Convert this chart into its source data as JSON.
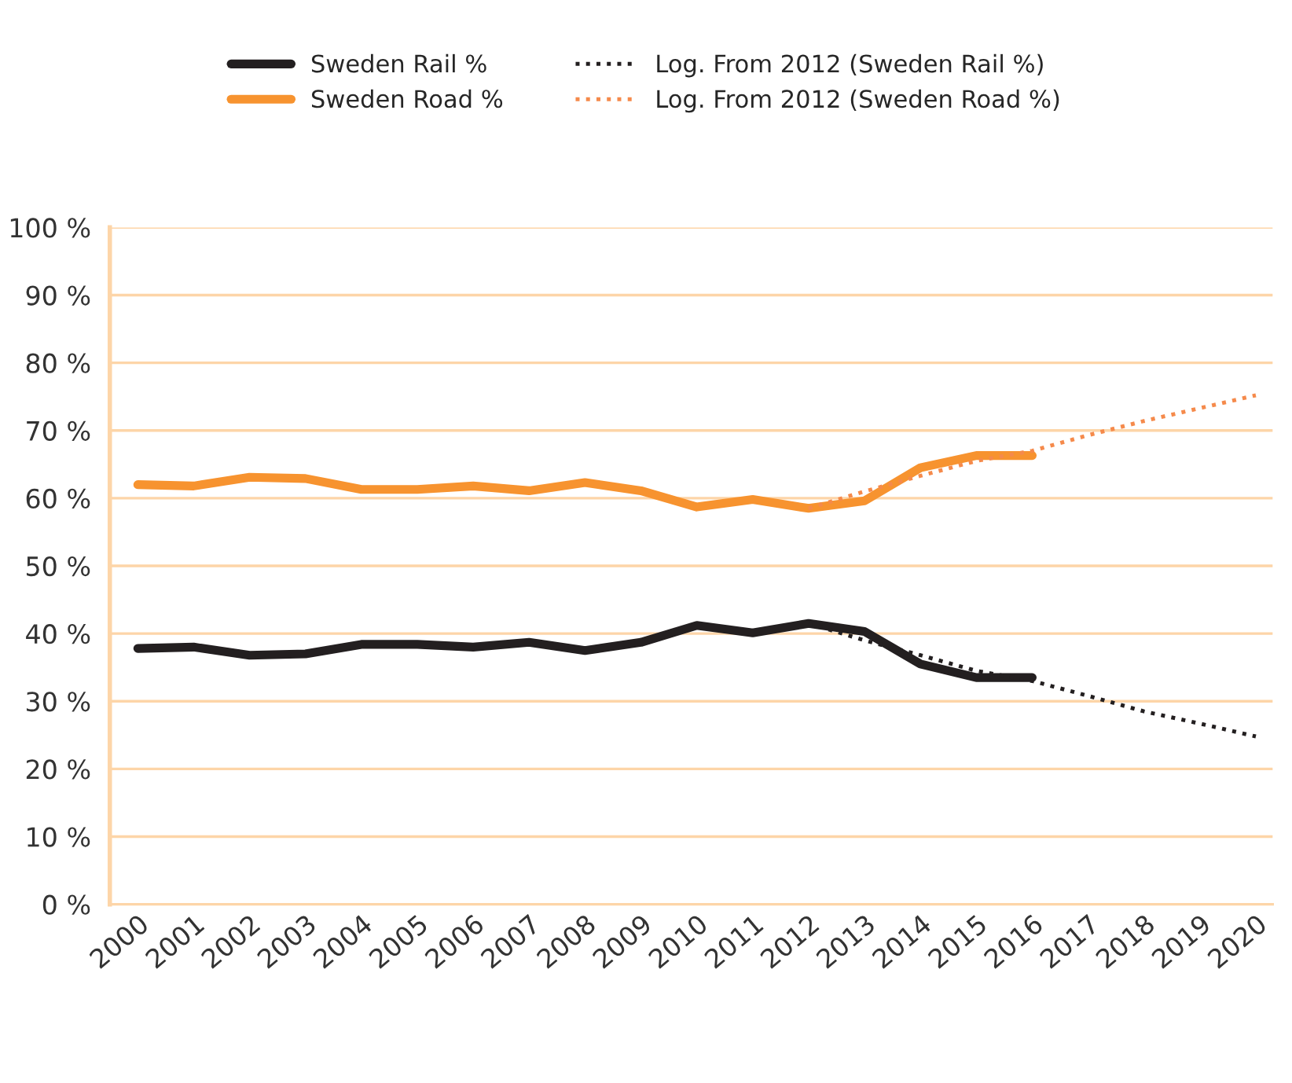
{
  "chart_data": {
    "type": "line",
    "categories": [
      "2000",
      "2001",
      "2002",
      "2003",
      "2004",
      "2005",
      "2006",
      "2007",
      "2008",
      "2009",
      "2010",
      "2011",
      "2012",
      "2013",
      "2014",
      "2015",
      "2016",
      "2017",
      "2018",
      "2019",
      "2020"
    ],
    "series": [
      {
        "name": "Sweden Rail %",
        "color": "#231f20",
        "line_style": "solid",
        "values": [
          37.8,
          38.0,
          36.8,
          37.0,
          38.4,
          38.4,
          38.0,
          38.7,
          37.5,
          38.7,
          41.2,
          40.1,
          41.5,
          40.3,
          35.5,
          33.5,
          33.5,
          null,
          null,
          null,
          null
        ]
      },
      {
        "name": "Sweden Road %",
        "color": "#f7932f",
        "line_style": "solid",
        "values": [
          62.0,
          61.8,
          63.1,
          62.9,
          61.3,
          61.3,
          61.8,
          61.1,
          62.3,
          61.1,
          58.7,
          59.8,
          58.5,
          59.6,
          64.5,
          66.3,
          66.3,
          null,
          null,
          null,
          null
        ]
      },
      {
        "name": "Log. From 2012 (Sweden Rail %)",
        "color": "#231f20",
        "line_style": "dotted",
        "values": [
          null,
          null,
          null,
          null,
          null,
          null,
          null,
          null,
          null,
          null,
          null,
          null,
          41.5,
          39.0,
          36.8,
          34.5,
          33.0,
          30.8,
          28.5,
          26.7,
          24.8
        ]
      },
      {
        "name": "Log. From 2012 (Sweden Road %)",
        "color": "#f58a4b",
        "line_style": "dotted",
        "values": [
          null,
          null,
          null,
          null,
          null,
          null,
          null,
          null,
          null,
          null,
          null,
          null,
          58.5,
          61.0,
          63.3,
          65.5,
          67.0,
          69.3,
          71.4,
          73.3,
          75.2
        ]
      }
    ],
    "ylim": [
      0,
      100
    ],
    "yticks": [
      {
        "value": 0,
        "label": "0 %"
      },
      {
        "value": 10,
        "label": "10 %"
      },
      {
        "value": 20,
        "label": "20 %"
      },
      {
        "value": 30,
        "label": "30 %"
      },
      {
        "value": 40,
        "label": "40 %"
      },
      {
        "value": 50,
        "label": "50 %"
      },
      {
        "value": 60,
        "label": "60 %"
      },
      {
        "value": 70,
        "label": "70 %"
      },
      {
        "value": 80,
        "label": "80 %"
      },
      {
        "value": 90,
        "label": "90 %"
      },
      {
        "value": 100,
        "label": "100 %"
      }
    ],
    "grid": "y",
    "legend": "top",
    "marker": "none"
  }
}
